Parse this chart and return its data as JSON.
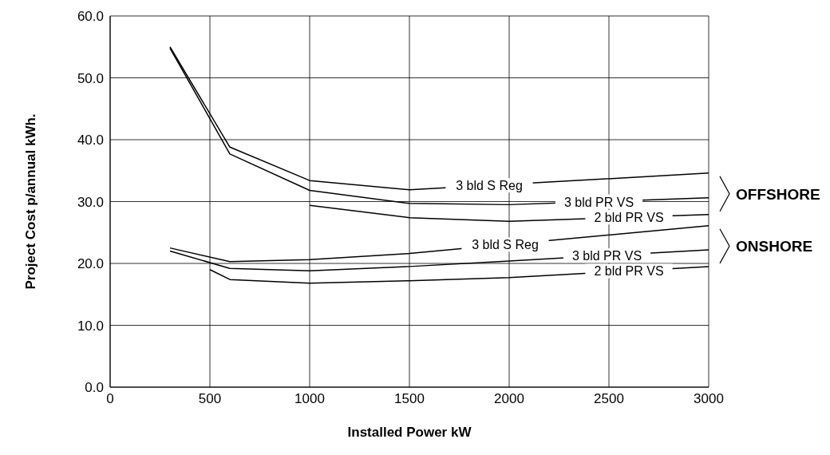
{
  "chart_data": {
    "type": "line",
    "xlabel": "Installed Power kW",
    "ylabel": "Project Cost p/annual kWh.",
    "xlim": [
      0,
      3000
    ],
    "xticks": [
      0,
      500,
      1000,
      1500,
      2000,
      2500,
      3000
    ],
    "ylim": [
      0,
      60
    ],
    "yticks": [
      {
        "value": 0,
        "label": "0.0"
      },
      {
        "value": 10,
        "label": "10.0"
      },
      {
        "value": 20,
        "label": "20.0"
      },
      {
        "value": 30,
        "label": "30.0"
      },
      {
        "value": 40,
        "label": "40.0"
      },
      {
        "value": 50,
        "label": "50.0"
      },
      {
        "value": 60,
        "label": "60.0"
      }
    ],
    "grid": true,
    "marker": "none",
    "line_style": "solid",
    "annotations": [
      "OFFSHORE",
      "ONSHORE"
    ],
    "series": [
      {
        "name": "3 bld S Reg",
        "color": "#000000",
        "x": [
          300,
          600,
          1000,
          1500,
          2000,
          3000
        ],
        "values": [
          55.0,
          38.8,
          33.4,
          31.9,
          null,
          34.6
        ]
      },
      {
        "name": "3 bld PR VS",
        "color": "#000000",
        "x": [
          300,
          600,
          1000,
          1500,
          2000,
          3000
        ],
        "values": [
          54.8,
          37.7,
          31.8,
          29.7,
          29.5,
          30.6
        ]
      },
      {
        "name": "2 bld PR VS",
        "color": "#000000",
        "x": [
          1000,
          1500,
          2000,
          3000
        ],
        "values": [
          29.4,
          27.4,
          26.8,
          27.9
        ]
      },
      {
        "name": "3 bld S Reg",
        "color": "#000000",
        "x": [
          300,
          600,
          1000,
          1500,
          2000,
          3000
        ],
        "values": [
          22.5,
          20.3,
          20.6,
          21.6,
          null,
          26.1
        ]
      },
      {
        "name": "3 bld PR VS",
        "color": "#000000",
        "x": [
          300,
          600,
          1000,
          1500,
          2000,
          3000
        ],
        "values": [
          22.0,
          19.2,
          18.8,
          19.5,
          20.4,
          22.2
        ]
      },
      {
        "name": "2 bld PR VS",
        "color": "#000000",
        "x": [
          500,
          600,
          1000,
          1500,
          2000,
          3000
        ],
        "values": [
          19.0,
          17.4,
          16.8,
          17.2,
          17.7,
          19.5
        ]
      }
    ]
  }
}
